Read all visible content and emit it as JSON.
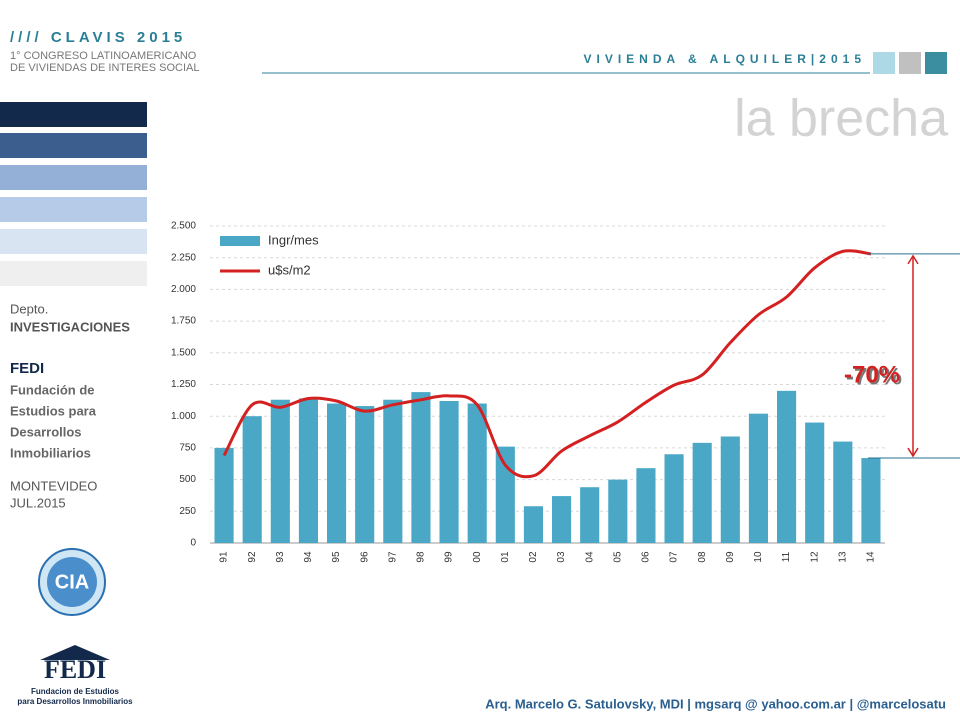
{
  "header": {
    "brand": "//// CLAVIS 2015",
    "congress_line1": "1° CONGRESO LATINOAMERICANO",
    "congress_line2": "DE VIVIENDAS DE INTERES SOCIAL",
    "section": "VIVIENDA & ALQUILER|2015",
    "title": "la brecha"
  },
  "sidebar": {
    "dept": "Depto.",
    "dept_name": "INVESTIGACIONES",
    "org": "FEDI",
    "org_full": [
      "Fundación de",
      "Estudios para",
      "Desarrollos",
      "Inmobiliarios"
    ],
    "city": "MONTEVIDEO",
    "date": "JUL.2015"
  },
  "logos": {
    "cia": "CIA",
    "fedi": "FEDI",
    "fedi_sub": [
      "Fundacion de Estudios",
      "para Desarrollos Inmobiliarios"
    ]
  },
  "footer": "Arq. Marcelo G. Satulovsky, MDI | mgsarq @ yahoo.com.ar | @marcelosatu",
  "chart_data": {
    "type": "bar_line",
    "categories": [
      "91",
      "92",
      "93",
      "94",
      "95",
      "96",
      "97",
      "98",
      "99",
      "00",
      "01",
      "02",
      "03",
      "04",
      "05",
      "06",
      "07",
      "08",
      "09",
      "10",
      "11",
      "12",
      "13",
      "14"
    ],
    "series": [
      {
        "name": "Ingr/mes",
        "color": "#4aa8c6",
        "type": "bar",
        "values": [
          750,
          1000,
          1130,
          1140,
          1100,
          1080,
          1130,
          1190,
          1120,
          1100,
          760,
          290,
          370,
          440,
          500,
          590,
          700,
          790,
          840,
          1020,
          1200,
          950,
          800,
          670
        ]
      },
      {
        "name": "u$s/m2",
        "color": "#d42020",
        "type": "line",
        "values": [
          690,
          1090,
          1070,
          1140,
          1120,
          1040,
          1090,
          1130,
          1160,
          1090,
          615,
          530,
          725,
          845,
          955,
          1110,
          1245,
          1325,
          1580,
          1800,
          1940,
          2170,
          2300,
          2280
        ]
      }
    ],
    "ylim": [
      0,
      2500
    ],
    "yticks": [
      0,
      250,
      500,
      750,
      {
        "value": 1000,
        "label": "1.000"
      },
      {
        "value": 1250,
        "label": "1.250"
      },
      {
        "value": 1500,
        "label": "1.500"
      },
      {
        "value": 1750,
        "label": "1.750"
      },
      {
        "value": 2000,
        "label": "2.000"
      },
      {
        "value": 2250,
        "label": "2.250"
      },
      {
        "value": 2500,
        "label": "2.500"
      }
    ],
    "grid": true,
    "legend": "upper left",
    "annotation": "-70%"
  }
}
